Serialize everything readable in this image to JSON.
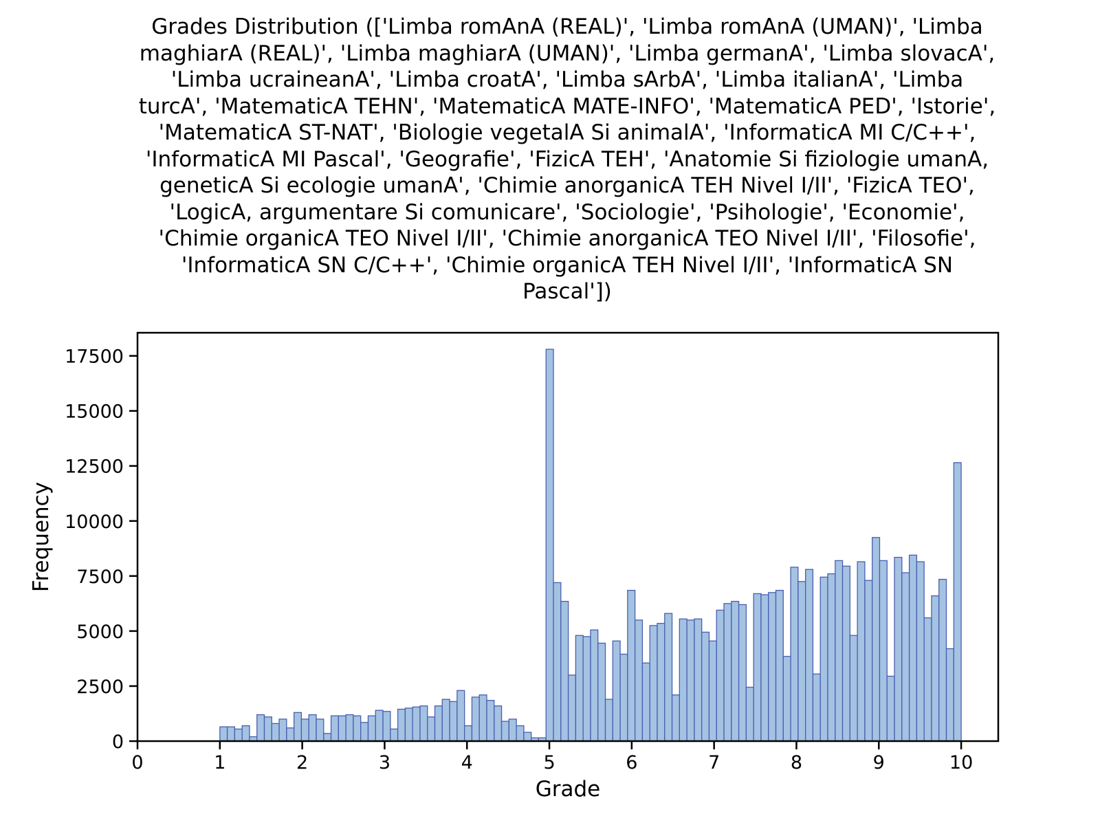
{
  "chart_data": {
    "type": "bar",
    "title": "Grades Distribution (['Limba romAnA (REAL)', 'Limba romAnA (UMAN)', 'Limba maghiarA (REAL)', 'Limba maghiarA (UMAN)', 'Limba germanA', 'Limba slovacA', 'Limba ucraineanA', 'Limba croatA', 'Limba sArbA', 'Limba italianA', 'Limba turcA', 'MatematicA TEHN', 'MatematicA MATE-INFO', 'MatematicA PED', 'Istorie', 'MatematicA ST-NAT', 'Biologie vegetalA Si animalA', 'InformaticA MI C/C++', 'InformaticA MI Pascal', 'Geografie', 'FizicA TEH', 'Anatomie Si fiziologie umanA, geneticA Si ecologie umanA', 'Chimie anorganicA TEH Nivel I/II', 'FizicA TEO', 'LogicA, argumentare Si comunicare', 'Sociologie', 'Psihologie', 'Economie', 'Chimie organicA TEO Nivel I/II', 'Chimie anorganicA TEO Nivel I/II', 'Filosofie', 'InformaticA SN C/C++', 'Chimie organicA TEH Nivel I/II', 'InformaticA SN Pascal'])",
    "xlabel": "Grade",
    "ylabel": "Frequency",
    "xlim": [
      0,
      10.45
    ],
    "ylim": [
      0,
      18550
    ],
    "xticks": [
      "0",
      "1",
      "2",
      "3",
      "4",
      "5",
      "6",
      "7",
      "8",
      "9",
      "10"
    ],
    "yticks": [
      "0",
      "2500",
      "5000",
      "7500",
      "10000",
      "12500",
      "15000",
      "17500"
    ],
    "bin_width": 0.09,
    "bin_start": 1.0,
    "values": [
      650,
      650,
      550,
      700,
      200,
      1200,
      1100,
      800,
      1000,
      600,
      1300,
      1000,
      1200,
      1000,
      350,
      1150,
      1150,
      1200,
      1150,
      850,
      1150,
      1400,
      1350,
      550,
      1450,
      1500,
      1550,
      1600,
      1100,
      1600,
      1900,
      1800,
      2300,
      700,
      2000,
      2100,
      1850,
      1600,
      900,
      1000,
      700,
      400,
      150,
      150,
      17800,
      7200,
      6350,
      3000,
      4800,
      4750,
      5050,
      4450,
      1900,
      4550,
      3950,
      6850,
      5500,
      3550,
      5250,
      5350,
      5800,
      2100,
      5550,
      5500,
      5550,
      4950,
      4550,
      5950,
      6250,
      6350,
      6200,
      2450,
      6700,
      6650,
      6750,
      6850,
      3850,
      7900,
      7250,
      7800,
      3050,
      7450,
      7600,
      8200,
      7950,
      4800,
      8150,
      7300,
      9250,
      8200,
      2950,
      8350,
      7650,
      8450,
      8150,
      5600,
      6600,
      7350,
      4200,
      12650
    ],
    "grid": false,
    "colors": {
      "fill": "#a4c2e2",
      "edge": "#4a5fae"
    }
  }
}
